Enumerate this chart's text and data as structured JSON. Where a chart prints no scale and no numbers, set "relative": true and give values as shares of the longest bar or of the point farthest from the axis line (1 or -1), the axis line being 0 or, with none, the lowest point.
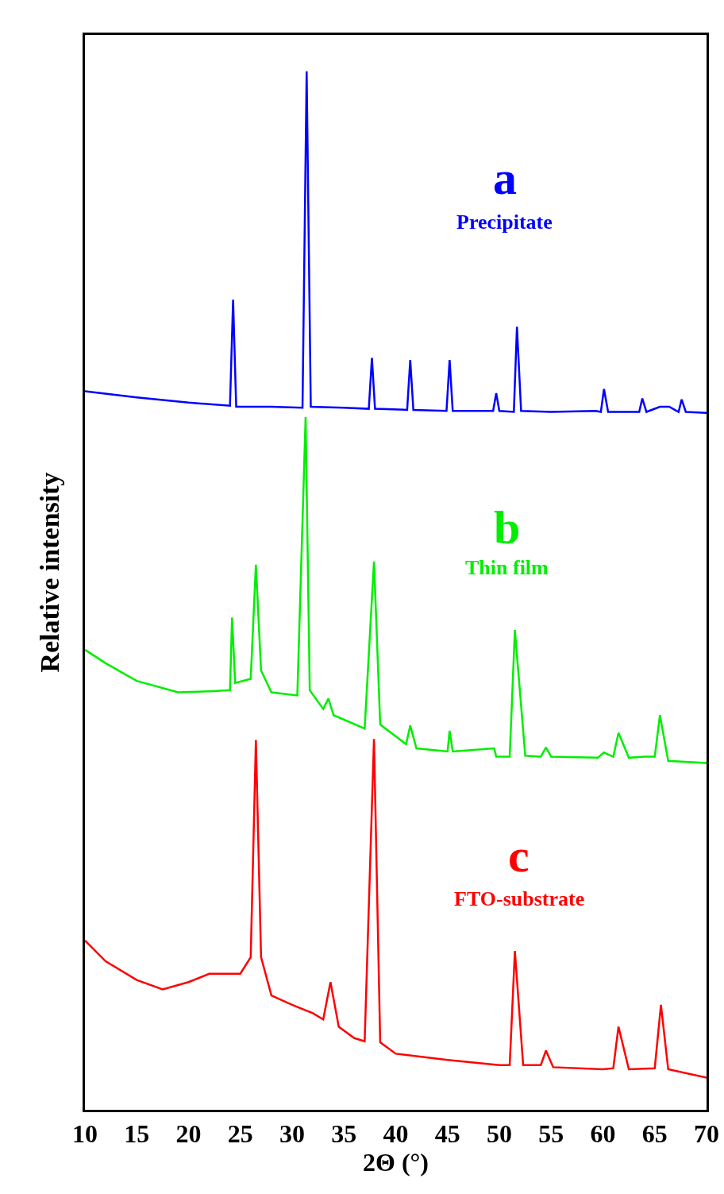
{
  "chart_data": {
    "type": "line",
    "relative": true,
    "xlabel": "2Θ (°)",
    "ylabel": "Relative intensity",
    "xlim": [
      10,
      70
    ],
    "xticks": [
      10,
      15,
      20,
      25,
      30,
      35,
      40,
      45,
      50,
      55,
      60,
      65,
      70
    ],
    "grid": false,
    "legend": false,
    "marker": "none",
    "line_style": "solid",
    "annotations": [
      "a",
      "b",
      "c"
    ],
    "series": [
      {
        "name": "Precipitate",
        "color": "#0000ff",
        "x": [
          10,
          15,
          20,
          24,
          24.3,
          24.6,
          28,
          31,
          31.4,
          31.8,
          35,
          37.4,
          37.7,
          38,
          41.1,
          41.4,
          41.7,
          44.9,
          45.2,
          45.5,
          49.4,
          49.7,
          50,
          51.4,
          51.7,
          52.1,
          55,
          59.3,
          59.8,
          60.1,
          60.5,
          63.5,
          63.8,
          64.2,
          65.5,
          66.4,
          67.3,
          67.6,
          68,
          70
        ],
        "values": [
          0.692,
          0.686,
          0.681,
          0.678,
          0.78,
          0.677,
          0.677,
          0.676,
          1.0,
          0.677,
          0.676,
          0.675,
          0.724,
          0.675,
          0.674,
          0.722,
          0.674,
          0.673,
          0.722,
          0.673,
          0.673,
          0.69,
          0.673,
          0.672,
          0.754,
          0.673,
          0.672,
          0.673,
          0.672,
          0.694,
          0.672,
          0.672,
          0.685,
          0.672,
          0.677,
          0.677,
          0.672,
          0.684,
          0.672,
          0.671
        ]
      },
      {
        "name": "Thin film",
        "color": "#00ee00",
        "x": [
          10,
          12,
          15,
          19,
          22,
          24,
          24.2,
          24.5,
          26,
          26.5,
          27,
          28,
          30.5,
          31.3,
          31.7,
          33,
          33.5,
          34,
          37,
          37.9,
          38.5,
          41,
          41.4,
          42,
          45,
          45.2,
          45.5,
          49.5,
          49.7,
          51,
          51.5,
          52.5,
          54,
          54.5,
          55,
          59.5,
          60.1,
          61,
          61.5,
          62.5,
          64,
          65,
          65.5,
          66.3,
          70
        ],
        "values": [
          0.443,
          0.43,
          0.413,
          0.402,
          0.403,
          0.404,
          0.474,
          0.411,
          0.415,
          0.525,
          0.423,
          0.402,
          0.399,
          0.667,
          0.404,
          0.386,
          0.396,
          0.38,
          0.367,
          0.528,
          0.371,
          0.352,
          0.37,
          0.348,
          0.345,
          0.365,
          0.345,
          0.348,
          0.34,
          0.34,
          0.462,
          0.341,
          0.34,
          0.349,
          0.34,
          0.339,
          0.344,
          0.34,
          0.363,
          0.339,
          0.34,
          0.34,
          0.38,
          0.336,
          0.334
        ]
      },
      {
        "name": "FTO-substrate",
        "color": "#ff0000",
        "x": [
          10,
          12,
          15,
          17.5,
          20,
          22,
          25,
          26,
          26.5,
          27,
          28,
          30,
          32,
          33,
          33.7,
          34.5,
          36,
          37,
          37.9,
          38.5,
          40,
          45,
          50,
          51,
          51.5,
          52.3,
          54,
          54.5,
          55.2,
          60,
          61,
          61.5,
          62.5,
          65,
          65.6,
          66.3,
          70
        ],
        "values": [
          0.163,
          0.143,
          0.125,
          0.116,
          0.123,
          0.131,
          0.131,
          0.147,
          0.356,
          0.147,
          0.11,
          0.101,
          0.093,
          0.087,
          0.123,
          0.08,
          0.069,
          0.066,
          0.357,
          0.065,
          0.054,
          0.048,
          0.043,
          0.043,
          0.153,
          0.043,
          0.043,
          0.057,
          0.041,
          0.039,
          0.04,
          0.08,
          0.039,
          0.04,
          0.101,
          0.039,
          0.031
        ]
      }
    ]
  }
}
